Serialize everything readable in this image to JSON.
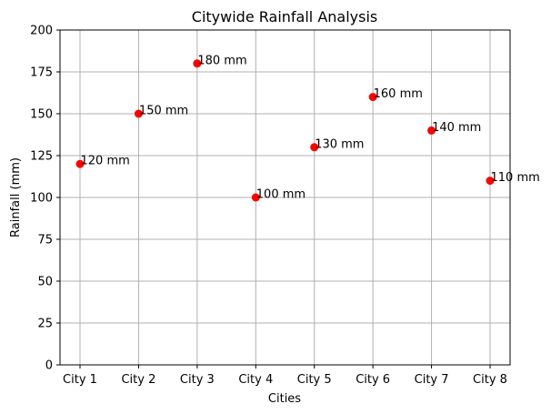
{
  "chart_data": {
    "type": "scatter",
    "title": "Citywide Rainfall Analysis",
    "xlabel": "Cities",
    "ylabel": "Rainfall (mm)",
    "categories": [
      "City 1",
      "City 2",
      "City 3",
      "City 4",
      "City 5",
      "City 6",
      "City 7",
      "City 8"
    ],
    "values": [
      120,
      150,
      180,
      100,
      130,
      160,
      140,
      110
    ],
    "data_labels": [
      "120 mm",
      "150 mm",
      "180 mm",
      "100 mm",
      "130 mm",
      "160 mm",
      "140 mm",
      "110 mm"
    ],
    "ylim": [
      0,
      200
    ],
    "yticks": [
      0,
      25,
      50,
      75,
      100,
      125,
      150,
      175,
      200
    ],
    "ytick_labels": [
      "0",
      "25",
      "50",
      "75",
      "100",
      "125",
      "150",
      "175",
      "200"
    ],
    "grid": true,
    "marker_color": "#ff0000",
    "grid_color": "#b0b0b0"
  }
}
